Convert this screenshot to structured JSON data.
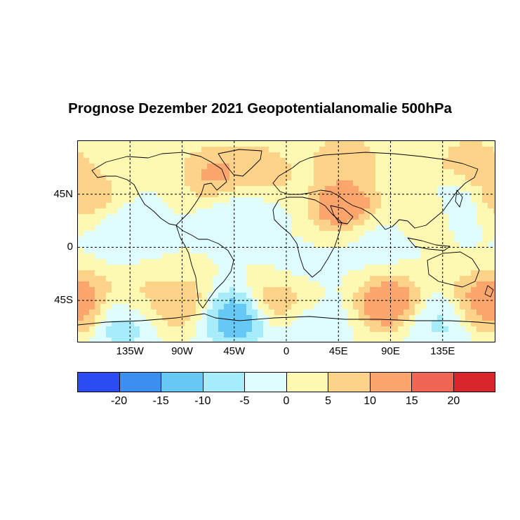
{
  "title": "Prognose Dezember 2021 Geopotentialanomalie 500hPa",
  "map": {
    "projection": "equirectangular",
    "lon_range": [
      -180,
      180
    ],
    "lat_range": [
      -80,
      90
    ],
    "gridlines": "dashed",
    "lat_ticks": [
      {
        "value": 45,
        "label": "45N"
      },
      {
        "value": 0,
        "label": "0"
      },
      {
        "value": -45,
        "label": "45S"
      }
    ],
    "lon_ticks": [
      {
        "value": -135,
        "label": "135W"
      },
      {
        "value": -90,
        "label": "90W"
      },
      {
        "value": -45,
        "label": "45W"
      },
      {
        "value": 0,
        "label": "0"
      },
      {
        "value": 45,
        "label": "45E"
      },
      {
        "value": 90,
        "label": "90E"
      },
      {
        "value": 135,
        "label": "135E"
      }
    ],
    "anomalies": [
      {
        "lon": -175,
        "lat": 45,
        "value": 12
      },
      {
        "lon": -60,
        "lat": 62,
        "value": 15
      },
      {
        "lon": -20,
        "lat": 65,
        "value": 10
      },
      {
        "lon": 50,
        "lat": 72,
        "value": 12
      },
      {
        "lon": 160,
        "lat": 68,
        "value": 12
      },
      {
        "lon": 50,
        "lat": 35,
        "value": 20
      },
      {
        "lon": 125,
        "lat": 35,
        "value": 7
      },
      {
        "lon": 145,
        "lat": 40,
        "value": -8
      },
      {
        "lon": -40,
        "lat": 28,
        "value": -6
      },
      {
        "lon": -140,
        "lat": 15,
        "value": -3
      },
      {
        "lon": 75,
        "lat": 5,
        "value": -2
      },
      {
        "lon": -175,
        "lat": -48,
        "value": 17
      },
      {
        "lon": -130,
        "lat": -48,
        "value": 10
      },
      {
        "lon": -95,
        "lat": -48,
        "value": 12
      },
      {
        "lon": 0,
        "lat": -45,
        "value": 15
      },
      {
        "lon": 90,
        "lat": -48,
        "value": 20
      },
      {
        "lon": 170,
        "lat": -45,
        "value": 15
      },
      {
        "lon": -140,
        "lat": -60,
        "value": -15
      },
      {
        "lon": -45,
        "lat": -60,
        "value": -18
      },
      {
        "lon": 20,
        "lat": -62,
        "value": -8
      },
      {
        "lon": 130,
        "lat": -62,
        "value": -8
      },
      {
        "lon": 10,
        "lat": -25,
        "value": -3
      }
    ]
  },
  "colorbar": {
    "colors": [
      "#2b4cf0",
      "#3a8ff0",
      "#66c8f4",
      "#a6ecfa",
      "#dffcff",
      "#fdf8b2",
      "#fdd38a",
      "#fca56c",
      "#f06654",
      "#d7262c"
    ],
    "labels": [
      "-20",
      "-15",
      "-10",
      "-5",
      "0",
      "5",
      "10",
      "15",
      "20"
    ],
    "levels": [
      -25,
      -20,
      -15,
      -10,
      -5,
      0,
      5,
      10,
      15,
      20,
      25
    ]
  }
}
